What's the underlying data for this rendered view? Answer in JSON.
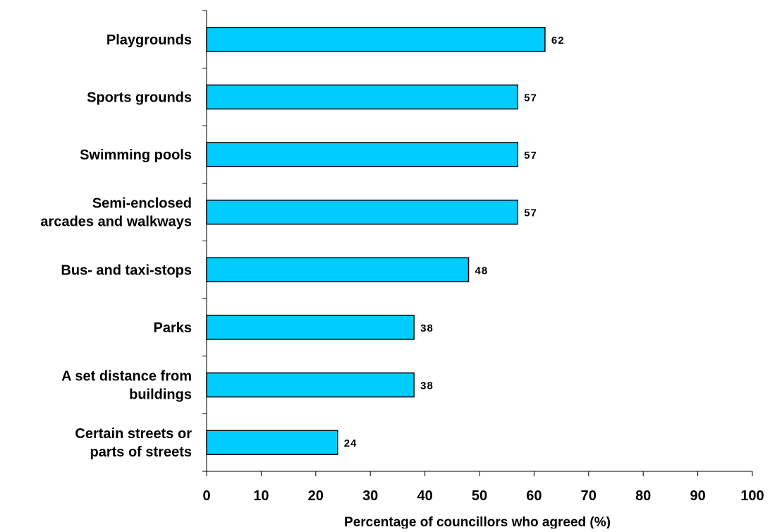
{
  "chart_data": {
    "type": "bar",
    "orientation": "horizontal",
    "categories": [
      [
        "Playgrounds"
      ],
      [
        "Sports grounds"
      ],
      [
        "Swimming pools"
      ],
      [
        "Semi-enclosed",
        "arcades and walkways"
      ],
      [
        "Bus- and taxi-stops"
      ],
      [
        "Parks"
      ],
      [
        "A set distance from",
        "buildings"
      ],
      [
        "Certain streets or",
        "parts of streets"
      ]
    ],
    "values": [
      62,
      57,
      57,
      57,
      48,
      38,
      38,
      24
    ],
    "data_labels": [
      "62",
      "57",
      "57",
      "57",
      "48",
      "38",
      "38",
      "24"
    ],
    "xlabel": "Percentage of councillors who agreed (%)",
    "ylabel": "",
    "xlim": [
      0,
      100
    ],
    "xticks": [
      0,
      10,
      20,
      30,
      40,
      50,
      60,
      70,
      80,
      90,
      100
    ],
    "grid": false,
    "legend": "none",
    "colors": {
      "bar_fill": "#00CCFF",
      "bar_stroke": "#000000",
      "axis": "#000000"
    }
  }
}
